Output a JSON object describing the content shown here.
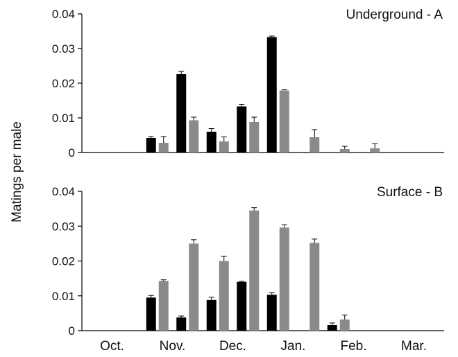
{
  "chart_data": [
    {
      "type": "bar",
      "panel_label": "Underground - A",
      "y_ticks": [
        "0",
        "0.01",
        "0.02",
        "0.03",
        "0.04"
      ],
      "ylim": [
        0,
        0.04
      ],
      "series": [
        {
          "color": "#000000",
          "values": [
            0,
            0,
            0.0042,
            0.0226,
            0.006,
            0.0133,
            0.0333,
            0,
            0,
            0,
            0,
            0
          ]
        },
        {
          "color": "#8a8a8a",
          "values": [
            0,
            0,
            0.0028,
            0.0093,
            0.0032,
            0.0088,
            0.0179,
            0.0044,
            0.001,
            0.0012,
            0,
            0
          ]
        }
      ],
      "errors": [
        [
          0,
          0,
          0.0004,
          0.0008,
          0.0009,
          0.0006,
          0.0003,
          0,
          0,
          0,
          0,
          0
        ],
        [
          0,
          0,
          0.0018,
          0.0009,
          0.0013,
          0.0014,
          0.0002,
          0.0022,
          0.0008,
          0.0013,
          0,
          0
        ]
      ]
    },
    {
      "type": "bar",
      "panel_label": "Surface - B",
      "y_ticks": [
        "0",
        "0.01",
        "0.02",
        "0.03",
        "0.04"
      ],
      "ylim": [
        0,
        0.04
      ],
      "series": [
        {
          "color": "#000000",
          "values": [
            0,
            0,
            0.0095,
            0.0038,
            0.0088,
            0.014,
            0.0103,
            0,
            0.0016,
            0,
            0,
            0
          ]
        },
        {
          "color": "#8a8a8a",
          "values": [
            0,
            0,
            0.0143,
            0.025,
            0.02,
            0.0345,
            0.0296,
            0.0252,
            0.0032,
            0,
            0,
            0
          ]
        }
      ],
      "errors": [
        [
          0,
          0,
          0.0006,
          0.0004,
          0.0008,
          0.0002,
          0.0006,
          0,
          0.0006,
          0,
          0,
          0
        ],
        [
          0,
          0,
          0.0003,
          0.0011,
          0.0014,
          0.0008,
          0.0008,
          0.0011,
          0.0013,
          0,
          0,
          0
        ]
      ]
    }
  ],
  "y_axis_label": "Matings per male",
  "x_tick_labels": [
    "Oct.",
    "Nov.",
    "Dec.",
    "Jan.",
    "Feb.",
    "Mar."
  ]
}
